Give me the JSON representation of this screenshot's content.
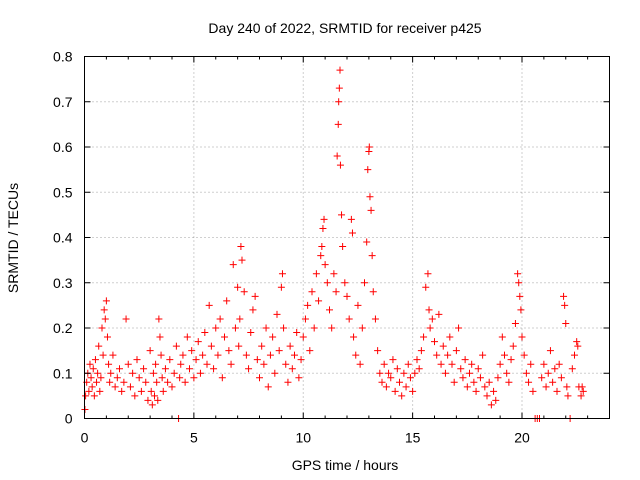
{
  "chart_data": {
    "type": "scatter",
    "title": "Day 240 of 2022, SRMTID for receiver p425",
    "xlabel": "GPS time / hours",
    "ylabel": "SRMTID / TECUs",
    "xlim": [
      0,
      24
    ],
    "ylim": [
      0,
      0.8
    ],
    "x_ticks": [
      0,
      5,
      10,
      15,
      20
    ],
    "x_tick_labels": [
      "0",
      "5",
      "10",
      "15",
      "20"
    ],
    "y_ticks": [
      0,
      0.1,
      0.2,
      0.3,
      0.4,
      0.5,
      0.6,
      0.7,
      0.8
    ],
    "y_tick_labels": [
      "0",
      "0.1",
      "0.2",
      "0.3",
      "0.4",
      "0.5",
      "0.6",
      "0.7",
      "0.8"
    ],
    "grid": true,
    "marker": "plus",
    "marker_color": "#ff0000",
    "series": [
      {
        "name": "SRMTID",
        "points": [
          [
            0.02,
            0.02
          ],
          [
            0.05,
            0.05
          ],
          [
            0.1,
            0.08
          ],
          [
            0.15,
            0.1
          ],
          [
            0.2,
            0.06
          ],
          [
            0.25,
            0.12
          ],
          [
            0.3,
            0.09
          ],
          [
            0.35,
            0.07
          ],
          [
            0.4,
            0.11
          ],
          [
            0.45,
            0.05
          ],
          [
            0.5,
            0.13
          ],
          [
            0.55,
            0.08
          ],
          [
            0.6,
            0.1
          ],
          [
            0.65,
            0.16
          ],
          [
            0.7,
            0.06
          ],
          [
            0.75,
            0.09
          ],
          [
            0.8,
            0.2
          ],
          [
            0.85,
            0.14
          ],
          [
            0.9,
            0.24
          ],
          [
            0.95,
            0.22
          ],
          [
            1.0,
            0.26
          ],
          [
            1.05,
            0.18
          ],
          [
            1.1,
            0.12
          ],
          [
            1.15,
            0.08
          ],
          [
            1.2,
            0.1
          ],
          [
            1.3,
            0.14
          ],
          [
            1.4,
            0.07
          ],
          [
            1.5,
            0.09
          ],
          [
            1.6,
            0.11
          ],
          [
            1.7,
            0.06
          ],
          [
            1.8,
            0.08
          ],
          [
            1.9,
            0.22
          ],
          [
            2.0,
            0.12
          ],
          [
            2.1,
            0.07
          ],
          [
            2.2,
            0.1
          ],
          [
            2.3,
            0.05
          ],
          [
            2.4,
            0.13
          ],
          [
            2.5,
            0.09
          ],
          [
            2.6,
            0.06
          ],
          [
            2.7,
            0.11
          ],
          [
            2.8,
            0.08
          ],
          [
            2.9,
            0.04
          ],
          [
            3.0,
            0.15
          ],
          [
            3.05,
            0.06
          ],
          [
            3.1,
            0.03
          ],
          [
            3.15,
            0.1
          ],
          [
            3.2,
            0.05
          ],
          [
            3.25,
            0.12
          ],
          [
            3.3,
            0.08
          ],
          [
            3.35,
            0.04
          ],
          [
            3.4,
            0.22
          ],
          [
            3.45,
            0.18
          ],
          [
            3.5,
            0.14
          ],
          [
            3.55,
            0.09
          ],
          [
            3.6,
            0.06
          ],
          [
            3.7,
            0.11
          ],
          [
            3.8,
            0.08
          ],
          [
            3.9,
            0.13
          ],
          [
            4.0,
            0.07
          ],
          [
            4.1,
            0.1
          ],
          [
            4.2,
            0.16
          ],
          [
            4.3,
            0.0
          ],
          [
            4.35,
            0.09
          ],
          [
            4.4,
            0.12
          ],
          [
            4.5,
            0.14
          ],
          [
            4.6,
            0.08
          ],
          [
            4.7,
            0.18
          ],
          [
            4.8,
            0.11
          ],
          [
            4.9,
            0.15
          ],
          [
            5.0,
            0.09
          ],
          [
            5.1,
            0.13
          ],
          [
            5.2,
            0.17
          ],
          [
            5.3,
            0.1
          ],
          [
            5.4,
            0.14
          ],
          [
            5.5,
            0.19
          ],
          [
            5.6,
            0.12
          ],
          [
            5.7,
            0.25
          ],
          [
            5.8,
            0.16
          ],
          [
            5.9,
            0.11
          ],
          [
            6.0,
            0.2
          ],
          [
            6.1,
            0.14
          ],
          [
            6.2,
            0.22
          ],
          [
            6.3,
            0.09
          ],
          [
            6.4,
            0.18
          ],
          [
            6.5,
            0.26
          ],
          [
            6.6,
            0.15
          ],
          [
            6.7,
            0.12
          ],
          [
            6.8,
            0.34
          ],
          [
            6.9,
            0.2
          ],
          [
            7.0,
            0.29
          ],
          [
            7.05,
            0.16
          ],
          [
            7.1,
            0.22
          ],
          [
            7.15,
            0.38
          ],
          [
            7.2,
            0.35
          ],
          [
            7.3,
            0.28
          ],
          [
            7.4,
            0.14
          ],
          [
            7.5,
            0.11
          ],
          [
            7.6,
            0.19
          ],
          [
            7.7,
            0.24
          ],
          [
            7.8,
            0.27
          ],
          [
            7.9,
            0.13
          ],
          [
            8.0,
            0.09
          ],
          [
            8.1,
            0.16
          ],
          [
            8.2,
            0.12
          ],
          [
            8.3,
            0.2
          ],
          [
            8.4,
            0.07
          ],
          [
            8.5,
            0.14
          ],
          [
            8.6,
            0.18
          ],
          [
            8.7,
            0.1
          ],
          [
            8.8,
            0.23
          ],
          [
            8.9,
            0.15
          ],
          [
            9.0,
            0.29
          ],
          [
            9.05,
            0.32
          ],
          [
            9.1,
            0.2
          ],
          [
            9.2,
            0.12
          ],
          [
            9.3,
            0.08
          ],
          [
            9.4,
            0.16
          ],
          [
            9.5,
            0.11
          ],
          [
            9.6,
            0.14
          ],
          [
            9.7,
            0.19
          ],
          [
            9.8,
            0.09
          ],
          [
            9.9,
            0.13
          ],
          [
            10.0,
            0.18
          ],
          [
            10.1,
            0.22
          ],
          [
            10.2,
            0.25
          ],
          [
            10.3,
            0.15
          ],
          [
            10.4,
            0.28
          ],
          [
            10.5,
            0.2
          ],
          [
            10.6,
            0.32
          ],
          [
            10.7,
            0.26
          ],
          [
            10.8,
            0.36
          ],
          [
            10.85,
            0.38
          ],
          [
            10.9,
            0.42
          ],
          [
            10.95,
            0.44
          ],
          [
            11.0,
            0.34
          ],
          [
            11.1,
            0.3
          ],
          [
            11.2,
            0.24
          ],
          [
            11.3,
            0.2
          ],
          [
            11.4,
            0.32
          ],
          [
            11.5,
            0.28
          ],
          [
            11.55,
            0.58
          ],
          [
            11.6,
            0.65
          ],
          [
            11.62,
            0.7
          ],
          [
            11.65,
            0.73
          ],
          [
            11.68,
            0.77
          ],
          [
            11.7,
            0.56
          ],
          [
            11.75,
            0.45
          ],
          [
            11.8,
            0.38
          ],
          [
            11.9,
            0.3
          ],
          [
            12.0,
            0.27
          ],
          [
            12.1,
            0.22
          ],
          [
            12.2,
            0.44
          ],
          [
            12.25,
            0.41
          ],
          [
            12.3,
            0.18
          ],
          [
            12.4,
            0.14
          ],
          [
            12.5,
            0.25
          ],
          [
            12.6,
            0.12
          ],
          [
            12.7,
            0.2
          ],
          [
            12.8,
            0.3
          ],
          [
            12.9,
            0.39
          ],
          [
            12.95,
            0.55
          ],
          [
            13.0,
            0.59
          ],
          [
            13.02,
            0.6
          ],
          [
            13.05,
            0.49
          ],
          [
            13.1,
            0.46
          ],
          [
            13.15,
            0.36
          ],
          [
            13.2,
            0.28
          ],
          [
            13.3,
            0.22
          ],
          [
            13.4,
            0.15
          ],
          [
            13.5,
            0.1
          ],
          [
            13.6,
            0.08
          ],
          [
            13.7,
            0.12
          ],
          [
            13.8,
            0.07
          ],
          [
            13.9,
            0.1
          ],
          [
            14.0,
            0.09
          ],
          [
            14.1,
            0.13
          ],
          [
            14.2,
            0.06
          ],
          [
            14.3,
            0.11
          ],
          [
            14.4,
            0.08
          ],
          [
            14.5,
            0.05
          ],
          [
            14.6,
            0.1
          ],
          [
            14.7,
            0.07
          ],
          [
            14.8,
            0.12
          ],
          [
            14.9,
            0.09
          ],
          [
            15.0,
            0.06
          ],
          [
            15.1,
            0.1
          ],
          [
            15.2,
            0.13
          ],
          [
            15.3,
            0.11
          ],
          [
            15.4,
            0.15
          ],
          [
            15.5,
            0.18
          ],
          [
            15.6,
            0.29
          ],
          [
            15.7,
            0.32
          ],
          [
            15.75,
            0.24
          ],
          [
            15.8,
            0.2
          ],
          [
            15.9,
            0.22
          ],
          [
            16.0,
            0.17
          ],
          [
            16.1,
            0.14
          ],
          [
            16.2,
            0.23
          ],
          [
            16.3,
            0.12
          ],
          [
            16.4,
            0.16
          ],
          [
            16.5,
            0.1
          ],
          [
            16.6,
            0.14
          ],
          [
            16.7,
            0.18
          ],
          [
            16.8,
            0.12
          ],
          [
            16.9,
            0.08
          ],
          [
            17.0,
            0.15
          ],
          [
            17.1,
            0.2
          ],
          [
            17.2,
            0.11
          ],
          [
            17.3,
            0.09
          ],
          [
            17.4,
            0.13
          ],
          [
            17.5,
            0.07
          ],
          [
            17.6,
            0.1
          ],
          [
            17.7,
            0.12
          ],
          [
            17.8,
            0.08
          ],
          [
            17.9,
            0.06
          ],
          [
            18.0,
            0.11
          ],
          [
            18.1,
            0.09
          ],
          [
            18.2,
            0.14
          ],
          [
            18.3,
            0.07
          ],
          [
            18.4,
            0.05
          ],
          [
            18.5,
            0.08
          ],
          [
            18.6,
            0.03
          ],
          [
            18.7,
            0.06
          ],
          [
            18.8,
            0.04
          ],
          [
            18.9,
            0.09
          ],
          [
            19.0,
            0.12
          ],
          [
            19.1,
            0.18
          ],
          [
            19.2,
            0.14
          ],
          [
            19.3,
            0.1
          ],
          [
            19.4,
            0.08
          ],
          [
            19.5,
            0.13
          ],
          [
            19.6,
            0.16
          ],
          [
            19.7,
            0.21
          ],
          [
            19.8,
            0.32
          ],
          [
            19.85,
            0.3
          ],
          [
            19.9,
            0.27
          ],
          [
            19.95,
            0.24
          ],
          [
            20.0,
            0.18
          ],
          [
            20.1,
            0.14
          ],
          [
            20.2,
            0.1
          ],
          [
            20.3,
            0.08
          ],
          [
            20.4,
            0.12
          ],
          [
            20.5,
            0.06
          ],
          [
            20.6,
            0.0
          ],
          [
            20.7,
            0.0
          ],
          [
            20.8,
            0.0
          ],
          [
            20.9,
            0.09
          ],
          [
            21.0,
            0.12
          ],
          [
            21.1,
            0.07
          ],
          [
            21.2,
            0.1
          ],
          [
            21.3,
            0.15
          ],
          [
            21.4,
            0.08
          ],
          [
            21.5,
            0.11
          ],
          [
            21.6,
            0.06
          ],
          [
            21.7,
            0.12
          ],
          [
            21.8,
            0.09
          ],
          [
            21.9,
            0.27
          ],
          [
            21.95,
            0.25
          ],
          [
            22.0,
            0.21
          ],
          [
            22.05,
            0.07
          ],
          [
            22.1,
            0.05
          ],
          [
            22.2,
            0.0
          ],
          [
            22.3,
            0.11
          ],
          [
            22.4,
            0.14
          ],
          [
            22.5,
            0.17
          ],
          [
            22.55,
            0.16
          ],
          [
            22.6,
            0.07
          ],
          [
            22.7,
            0.05
          ],
          [
            22.75,
            0.07
          ],
          [
            22.8,
            0.06
          ]
        ]
      }
    ]
  }
}
